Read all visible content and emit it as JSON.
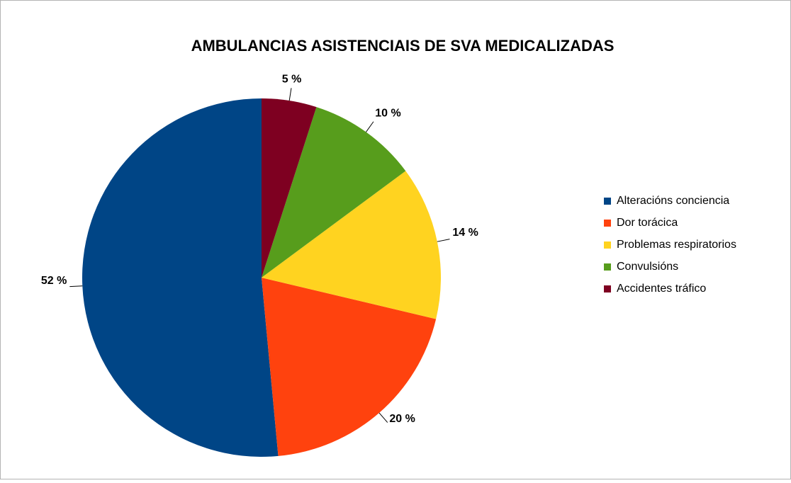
{
  "chart_data": {
    "type": "pie",
    "title": "AMBULANCIAS ASISTENCIAIS DE SVA MEDICALIZADAS",
    "categories": [
      "Alteracións conciencia",
      "Dor torácica",
      "Problemas respiratorios",
      "Convulsións",
      "Accidentes tráfico"
    ],
    "values": [
      52,
      20,
      14,
      10,
      5
    ],
    "value_labels": [
      "52 %",
      "20 %",
      "14 %",
      "10 %",
      "5 %"
    ],
    "colors": [
      "#004586",
      "#ff420e",
      "#ffd320",
      "#579d1c",
      "#7e0021"
    ],
    "legend": "right"
  }
}
